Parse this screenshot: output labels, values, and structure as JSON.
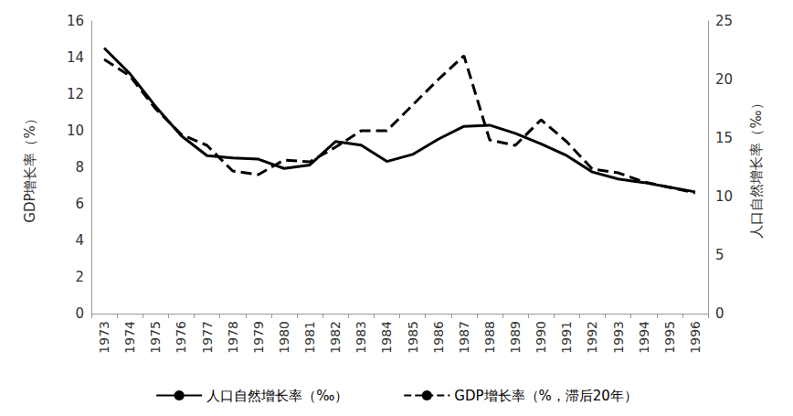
{
  "chart_data": {
    "type": "line",
    "categories": [
      "1973",
      "1974",
      "1975",
      "1976",
      "1977",
      "1978",
      "1979",
      "1980",
      "1981",
      "1982",
      "1983",
      "1984",
      "1985",
      "1986",
      "1987",
      "1988",
      "1989",
      "1990",
      "1991",
      "1992",
      "1993",
      "1994",
      "1995",
      "1996"
    ],
    "y_label": "GDP增长率（%）",
    "y2_label": "人口自然增长率（‰）",
    "ylim": [
      0,
      16
    ],
    "yticks": [
      0,
      2,
      4,
      6,
      8,
      10,
      12,
      14,
      16
    ],
    "y2lim": [
      0,
      25
    ],
    "y2ticks": [
      0,
      5,
      10,
      15,
      20,
      25
    ],
    "grid": false,
    "legend": "bottom",
    "series": [
      {
        "name": "人口自然增长率（‰）",
        "axis": "y2",
        "color": "#000000",
        "line_style": "solid",
        "values": [
          22.7,
          20.5,
          17.7,
          15.2,
          13.5,
          13.3,
          13.2,
          12.4,
          12.7,
          14.7,
          14.4,
          13.0,
          13.6,
          14.9,
          16.0,
          16.1,
          15.4,
          14.5,
          13.5,
          12.1,
          11.5,
          11.2,
          10.8,
          10.4
        ]
      },
      {
        "name": "GDP增长率（%，滞后20年）",
        "axis": "y",
        "color": "#000000",
        "line_style": "dashed",
        "values": [
          13.9,
          13.0,
          11.2,
          9.8,
          9.2,
          7.8,
          7.6,
          8.4,
          8.3,
          9.1,
          10.0,
          10.0,
          11.4,
          12.8,
          14.1,
          9.5,
          9.2,
          10.6,
          9.4,
          7.9,
          7.7,
          7.2,
          6.9,
          6.6
        ]
      }
    ]
  }
}
